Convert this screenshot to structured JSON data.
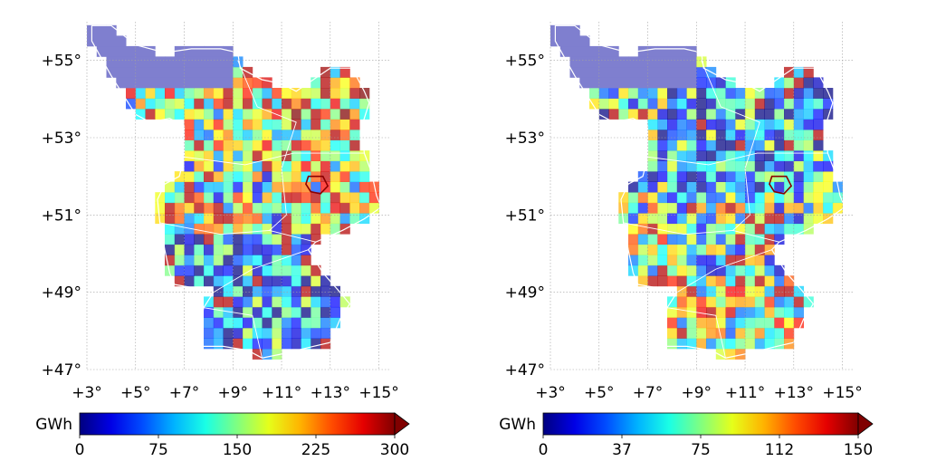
{
  "chart_data": [
    {
      "type": "heatmap",
      "title": "",
      "xlabel": "",
      "ylabel": "",
      "xlim": [
        3,
        15.5
      ],
      "ylim": [
        47,
        56
      ],
      "x_ticks": [
        "+3°",
        "+5°",
        "+7°",
        "+9°",
        "+11°",
        "+13°",
        "+15°"
      ],
      "y_ticks": [
        "+47°",
        "+49°",
        "+51°",
        "+53°",
        "+55°"
      ],
      "grid": true,
      "colorbar": {
        "label": "GWh",
        "min": 0,
        "max": 300,
        "ticks": [
          "0",
          "75",
          "150",
          "225",
          "300"
        ],
        "colormap": "jet",
        "extend": "max"
      },
      "highlight_region": "dark red outline near 12.5°E, 51.8°N",
      "values_description": "High values concentrated in the north (lower Saxony/Schleswig-Holstein coast) and eastern regions; south mostly low"
    },
    {
      "type": "heatmap",
      "title": "",
      "xlabel": "",
      "ylabel": "",
      "xlim": [
        3,
        15.5
      ],
      "ylim": [
        47,
        56
      ],
      "x_ticks": [
        "+3°",
        "+5°",
        "+7°",
        "+9°",
        "+11°",
        "+13°",
        "+15°"
      ],
      "y_ticks": [
        "+47°",
        "+49°",
        "+51°",
        "+53°",
        "+55°"
      ],
      "grid": true,
      "colorbar": {
        "label": "GWh",
        "min": 0,
        "max": 150,
        "ticks": [
          "0",
          "37",
          "75",
          "112",
          "150"
        ],
        "colormap": "jet",
        "extend": "max"
      },
      "highlight_region": "dark red outline near 12.5°E, 51.8°N",
      "values_description": "High values concentrated in the south (Bavaria) and west; north mostly low"
    }
  ],
  "colors": {
    "sea_mask": "#7f7fcf",
    "borders": "#ffffff",
    "highlight": "#8b0000",
    "grid": "#a0a0a0"
  }
}
